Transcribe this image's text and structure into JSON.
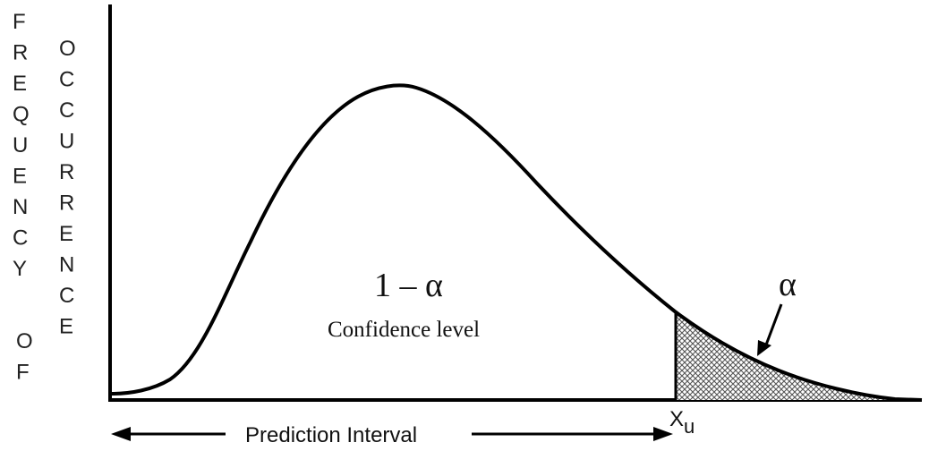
{
  "y_label_left": "FREQUENCY",
  "y_label_mid": "OF",
  "y_label_right": "OCCURRENCE",
  "main_label": "1 – α",
  "sub_label": "Confidence level",
  "alpha_label": "α",
  "xu_label": "X",
  "xu_sub": "u",
  "interval_label": "Prediction Interval",
  "colors": {
    "ink": "#000000",
    "fill": "#777777"
  }
}
